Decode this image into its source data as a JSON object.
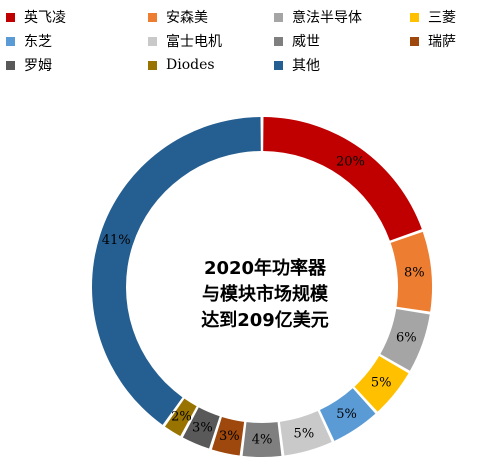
{
  "chart_data": {
    "type": "pie",
    "donut": true,
    "legend_position": "top",
    "title_lines": [
      "2020年功率器",
      "与模块市场规模",
      "达到209亿美元"
    ],
    "slices": [
      {
        "name": "英飞凌",
        "value": 20,
        "label": "20%",
        "color": "#c00000",
        "label_color": "#000000"
      },
      {
        "name": "安森美",
        "value": 8,
        "label": "8%",
        "color": "#ed7d31",
        "label_color": "#000000"
      },
      {
        "name": "意法半导体",
        "value": 6,
        "label": "6%",
        "color": "#a5a5a5",
        "label_color": "#000000"
      },
      {
        "name": "三菱",
        "value": 5,
        "label": "5%",
        "color": "#ffc000",
        "label_color": "#000000"
      },
      {
        "name": "东芝",
        "value": 5,
        "label": "5%",
        "color": "#5b9bd5",
        "label_color": "#000000"
      },
      {
        "name": "富士电机",
        "value": 5,
        "label": "5%",
        "color": "#c9c9c9",
        "label_color": "#000000"
      },
      {
        "name": "威世",
        "value": 4,
        "label": "4%",
        "color": "#7f7f7f",
        "label_color": "#000000"
      },
      {
        "name": "瑞萨",
        "value": 3,
        "label": "3%",
        "color": "#9e480e",
        "label_color": "#000000"
      },
      {
        "name": "罗姆",
        "value": 3,
        "label": "3%",
        "color": "#595959",
        "label_color": "#000000"
      },
      {
        "name": "Diodes",
        "value": 2,
        "label": "2%",
        "color": "#997300",
        "label_color": "#000000"
      },
      {
        "name": "其他",
        "value": 41,
        "label": "41%",
        "color": "#255e91",
        "label_color": "#000000"
      }
    ]
  }
}
